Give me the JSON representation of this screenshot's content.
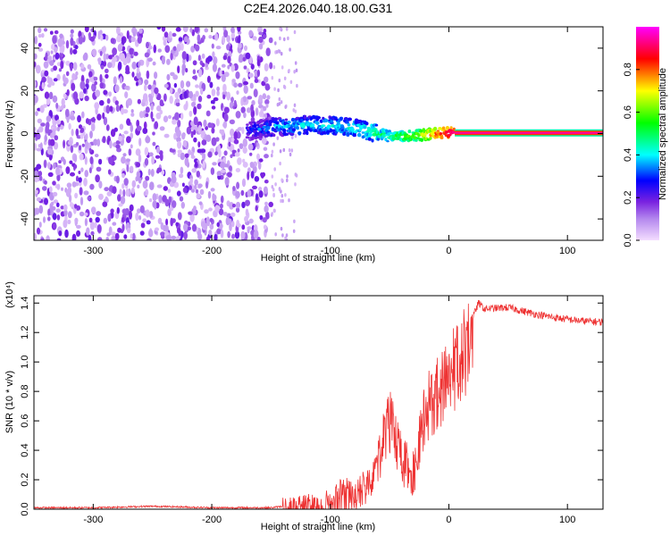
{
  "chart_data": [
    {
      "type": "heatmap",
      "title": "C2E4.2026.040.18.00.G31",
      "xlabel": "Height of straight line (km)",
      "ylabel": "Frequency (Hz)",
      "xlim": [
        -350,
        130
      ],
      "ylim": [
        -50,
        50
      ],
      "x_ticks": [
        -300,
        -200,
        -100,
        0,
        100
      ],
      "y_ticks": [
        -40,
        -20,
        0,
        20,
        40
      ],
      "colorbar": {
        "label": "Normalized spectral amplitude",
        "range": [
          0.0,
          1.0
        ],
        "ticks": [
          0.0,
          0.2,
          0.4,
          0.6,
          0.8
        ],
        "colormap": [
          "#f2d8ff",
          "#8a2be2",
          "#0000ff",
          "#00ffff",
          "#00ff00",
          "#ffff00",
          "#ff0000",
          "#ff00ff"
        ]
      },
      "features": [
        {
          "type": "noise",
          "x_range": [
            -350,
            -150
          ],
          "y_range": [
            -50,
            50
          ],
          "amplitude": 0.12
        },
        {
          "type": "sparse_noise",
          "x_range": [
            -150,
            -128
          ],
          "y_range": [
            -50,
            50
          ],
          "amplitude": 0.05
        },
        {
          "type": "signal_band",
          "points": [
            {
              "x": -170,
              "y": 1.0,
              "amp": 0.25
            },
            {
              "x": -150,
              "y": 3.0,
              "amp": 0.35
            },
            {
              "x": -120,
              "y": 4.0,
              "amp": 0.4
            },
            {
              "x": -90,
              "y": 3.5,
              "amp": 0.4
            },
            {
              "x": -70,
              "y": 1.5,
              "amp": 0.45
            },
            {
              "x": -50,
              "y": -1.5,
              "amp": 0.5
            },
            {
              "x": -30,
              "y": -1.0,
              "amp": 0.6
            },
            {
              "x": -10,
              "y": 0.0,
              "amp": 0.8
            },
            {
              "x": 5,
              "y": 0.5,
              "amp": 0.95
            },
            {
              "x": 130,
              "y": 0.3,
              "amp": 0.95
            }
          ]
        }
      ]
    },
    {
      "type": "line",
      "title": "",
      "xlabel": "Height of straight line (km)",
      "ylabel": "SNR (10 * v/v)",
      "y_multiplier": "(x10⁴)",
      "xlim": [
        -350,
        130
      ],
      "ylim": [
        0,
        1.45
      ],
      "x_ticks": [
        -300,
        -200,
        -100,
        0,
        100
      ],
      "y_ticks": [
        0.0,
        0.2,
        0.4,
        0.6,
        0.8,
        1.0,
        1.2,
        1.4
      ],
      "color": "#ee3333",
      "series": [
        {
          "values": [
            [
              -350,
              0.01
            ],
            [
              -300,
              0.01
            ],
            [
              -250,
              0.02
            ],
            [
              -200,
              0.01
            ],
            [
              -150,
              0.01
            ],
            [
              -130,
              0.03
            ],
            [
              -110,
              0.05
            ],
            [
              -100,
              0.07
            ],
            [
              -90,
              0.15
            ],
            [
              -80,
              0.12
            ],
            [
              -70,
              0.2
            ],
            [
              -60,
              0.4
            ],
            [
              -50,
              0.7
            ],
            [
              -40,
              0.4
            ],
            [
              -30,
              0.3
            ],
            [
              -20,
              0.75
            ],
            [
              -10,
              0.9
            ],
            [
              0,
              1.0
            ],
            [
              10,
              1.15
            ],
            [
              20,
              1.3
            ],
            [
              25,
              1.4
            ],
            [
              30,
              1.36
            ],
            [
              50,
              1.37
            ],
            [
              70,
              1.33
            ],
            [
              90,
              1.3
            ],
            [
              110,
              1.28
            ],
            [
              130,
              1.27
            ]
          ]
        }
      ]
    }
  ]
}
